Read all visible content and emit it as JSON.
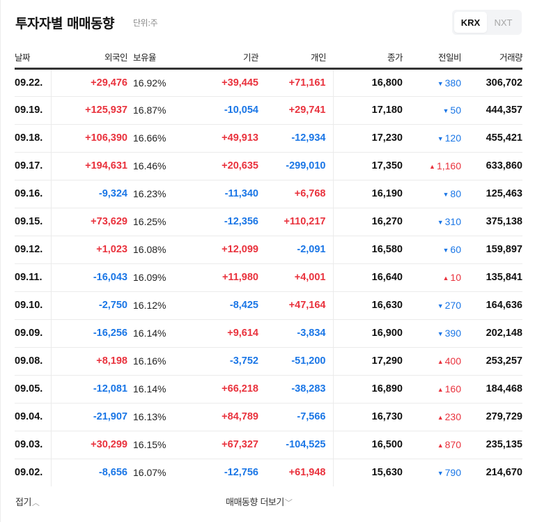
{
  "header": {
    "title": "투자자별 매매동향",
    "unit": "단위:주",
    "market_toggle": [
      {
        "label": "KRX",
        "active": true
      },
      {
        "label": "NXT",
        "active": false
      }
    ]
  },
  "table": {
    "columns": {
      "date": "날짜",
      "foreign": "외국인",
      "ownership": "보유율",
      "institution": "기관",
      "individual": "개인",
      "close": "종가",
      "change": "전일비",
      "volume": "거래량"
    },
    "rows": [
      {
        "date": "09.22.",
        "foreign": "+29,476",
        "ownership": "16.92%",
        "institution": "+39,445",
        "individual": "+71,161",
        "close": "16,800",
        "change_dir": "down",
        "change": "380",
        "volume": "306,702"
      },
      {
        "date": "09.19.",
        "foreign": "+125,937",
        "ownership": "16.87%",
        "institution": "-10,054",
        "individual": "+29,741",
        "close": "17,180",
        "change_dir": "down",
        "change": "50",
        "volume": "444,357"
      },
      {
        "date": "09.18.",
        "foreign": "+106,390",
        "ownership": "16.66%",
        "institution": "+49,913",
        "individual": "-12,934",
        "close": "17,230",
        "change_dir": "down",
        "change": "120",
        "volume": "455,421"
      },
      {
        "date": "09.17.",
        "foreign": "+194,631",
        "ownership": "16.46%",
        "institution": "+20,635",
        "individual": "-299,010",
        "close": "17,350",
        "change_dir": "up",
        "change": "1,160",
        "volume": "633,860"
      },
      {
        "date": "09.16.",
        "foreign": "-9,324",
        "ownership": "16.23%",
        "institution": "-11,340",
        "individual": "+6,768",
        "close": "16,190",
        "change_dir": "down",
        "change": "80",
        "volume": "125,463"
      },
      {
        "date": "09.15.",
        "foreign": "+73,629",
        "ownership": "16.25%",
        "institution": "-12,356",
        "individual": "+110,217",
        "close": "16,270",
        "change_dir": "down",
        "change": "310",
        "volume": "375,138"
      },
      {
        "date": "09.12.",
        "foreign": "+1,023",
        "ownership": "16.08%",
        "institution": "+12,099",
        "individual": "-2,091",
        "close": "16,580",
        "change_dir": "down",
        "change": "60",
        "volume": "159,897"
      },
      {
        "date": "09.11.",
        "foreign": "-16,043",
        "ownership": "16.09%",
        "institution": "+11,980",
        "individual": "+4,001",
        "close": "16,640",
        "change_dir": "up",
        "change": "10",
        "volume": "135,841"
      },
      {
        "date": "09.10.",
        "foreign": "-2,750",
        "ownership": "16.12%",
        "institution": "-8,425",
        "individual": "+47,164",
        "close": "16,630",
        "change_dir": "down",
        "change": "270",
        "volume": "164,636"
      },
      {
        "date": "09.09.",
        "foreign": "-16,256",
        "ownership": "16.14%",
        "institution": "+9,614",
        "individual": "-3,834",
        "close": "16,900",
        "change_dir": "down",
        "change": "390",
        "volume": "202,148"
      },
      {
        "date": "09.08.",
        "foreign": "+8,198",
        "ownership": "16.16%",
        "institution": "-3,752",
        "individual": "-51,200",
        "close": "17,290",
        "change_dir": "up",
        "change": "400",
        "volume": "253,257"
      },
      {
        "date": "09.05.",
        "foreign": "-12,081",
        "ownership": "16.14%",
        "institution": "+66,218",
        "individual": "-38,283",
        "close": "16,890",
        "change_dir": "up",
        "change": "160",
        "volume": "184,468"
      },
      {
        "date": "09.04.",
        "foreign": "-21,907",
        "ownership": "16.13%",
        "institution": "+84,789",
        "individual": "-7,566",
        "close": "16,730",
        "change_dir": "up",
        "change": "230",
        "volume": "279,729"
      },
      {
        "date": "09.03.",
        "foreign": "+30,299",
        "ownership": "16.15%",
        "institution": "+67,327",
        "individual": "-104,525",
        "close": "16,500",
        "change_dir": "up",
        "change": "870",
        "volume": "235,135"
      },
      {
        "date": "09.02.",
        "foreign": "-8,656",
        "ownership": "16.07%",
        "institution": "-12,756",
        "individual": "+61,948",
        "close": "15,630",
        "change_dir": "down",
        "change": "790",
        "volume": "214,670"
      }
    ]
  },
  "footer": {
    "fold_label": "접기",
    "fold_icon": "chevron-up-icon",
    "more_label": "매매동향 더보기",
    "more_icon": "chevron-down-icon"
  },
  "colors": {
    "positive": "#e9323d",
    "negative": "#1a76e6",
    "text": "#111111",
    "divider": "#ebebeb",
    "header_rule": "#333333"
  }
}
